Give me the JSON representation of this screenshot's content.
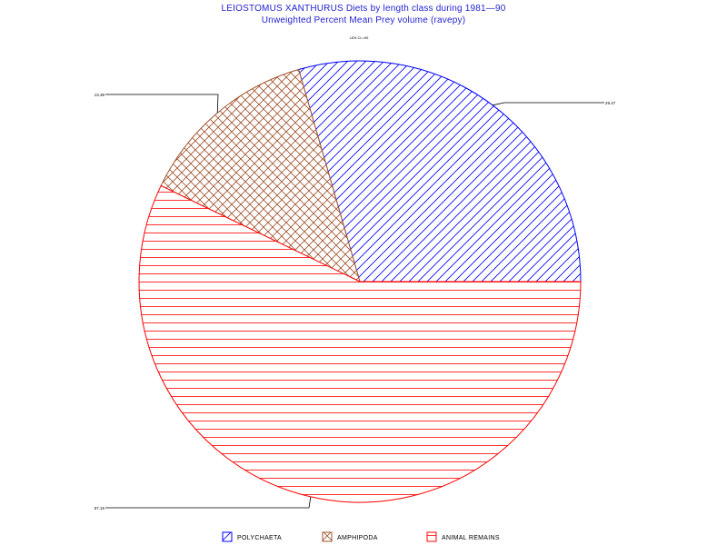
{
  "chart_data": {
    "type": "pie",
    "title": "LEIOSTOMUS XANTHURUS Diets by length class during 1981—90",
    "subtitle": "Unweighted Percent Mean Prey volume (ravepy)",
    "subgroup_label": "LEN CL=99",
    "slices": [
      {
        "name": "POLYCHAETA",
        "value": 29.47,
        "label": "29.47",
        "color": "#0000ff",
        "pattern": "diagonal"
      },
      {
        "name": "AMPHIPODA",
        "value": 13.38,
        "label": "13.38",
        "color": "#a0522d",
        "pattern": "crosshatch"
      },
      {
        "name": "ANIMAL REMAINS",
        "value": 57.15,
        "label": "57.15",
        "color": "#ff0000",
        "pattern": "horizontal"
      }
    ],
    "legend_position": "bottom",
    "start_angle_deg": 0,
    "direction": "counterclockwise"
  }
}
